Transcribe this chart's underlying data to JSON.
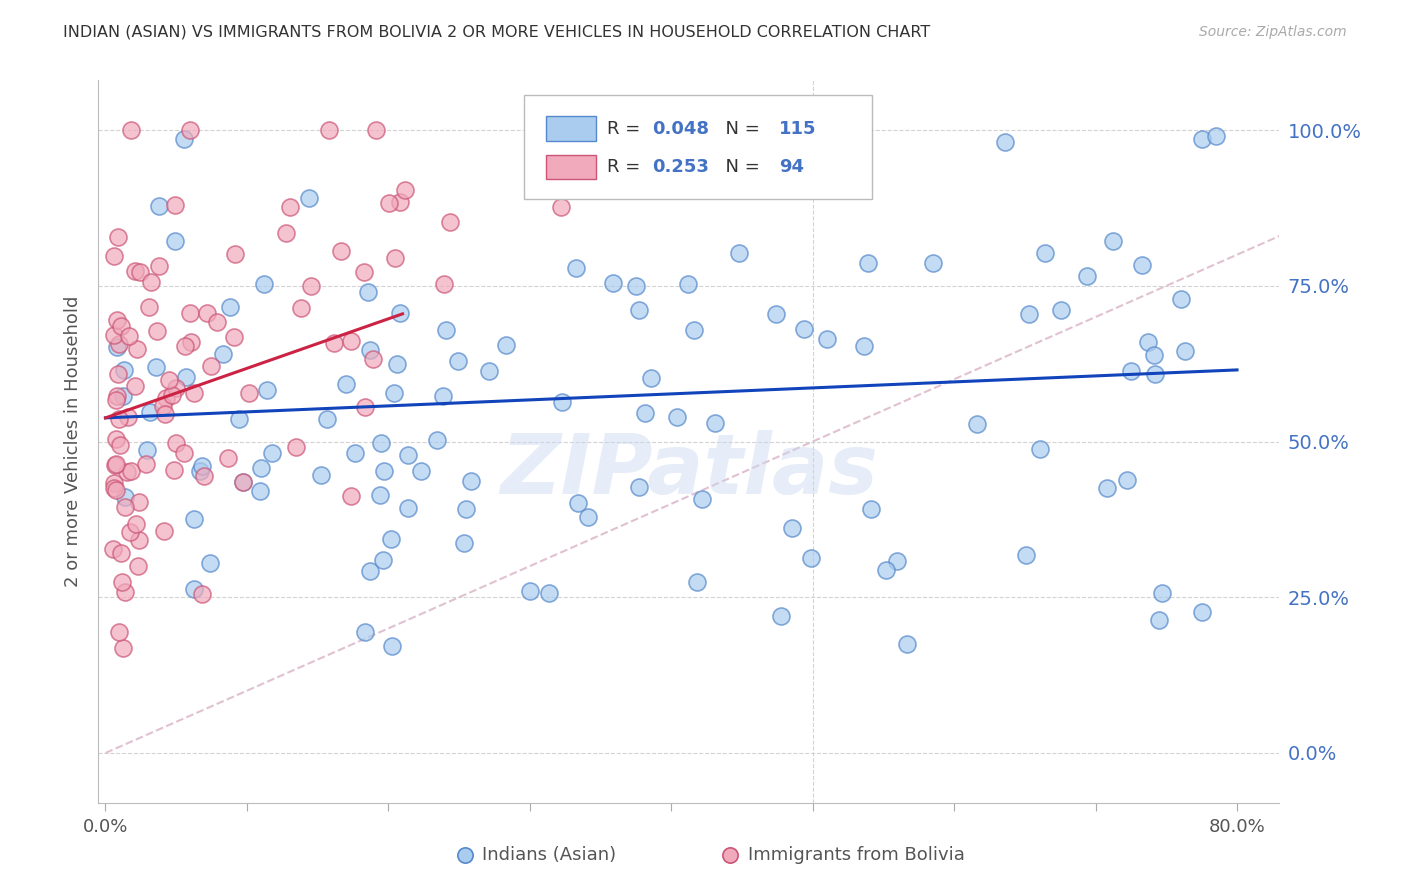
{
  "title": "INDIAN (ASIAN) VS IMMIGRANTS FROM BOLIVIA 2 OR MORE VEHICLES IN HOUSEHOLD CORRELATION CHART",
  "source": "Source: ZipAtlas.com",
  "ylabel": "2 or more Vehicles in Household",
  "xlim": [
    -0.005,
    0.83
  ],
  "ylim": [
    -0.08,
    1.08
  ],
  "x_ticks": [
    0.0,
    0.1,
    0.2,
    0.3,
    0.4,
    0.5,
    0.6,
    0.7,
    0.8
  ],
  "x_tick_labels": [
    "0.0%",
    "",
    "",
    "",
    "",
    "",
    "",
    "",
    "80.0%"
  ],
  "y_ticks_right": [
    0.0,
    0.25,
    0.5,
    0.75,
    1.0
  ],
  "y_tick_labels_right": [
    "0.0%",
    "25.0%",
    "50.0%",
    "75.0%",
    "100.0%"
  ],
  "r1": "0.048",
  "n1": "115",
  "r2": "0.253",
  "n2": "94",
  "color_blue_fill": "#aaccee",
  "color_blue_edge": "#5588cc",
  "color_pink_fill": "#f0aabb",
  "color_pink_edge": "#cc5577",
  "color_trend_blue": "#1144bb",
  "color_trend_pink": "#cc2244",
  "color_axis_blue": "#4472c4",
  "color_grid": "#cccccc",
  "color_diag": "#ddbbcc",
  "watermark": "ZIPatlas",
  "legend1_label": "Indians (Asian)",
  "legend2_label": "Immigrants from Bolivia",
  "indian_trend_x": [
    0.0,
    0.8
  ],
  "indian_trend_y": [
    0.538,
    0.615
  ],
  "bolivia_trend_x": [
    0.0,
    0.21
  ],
  "bolivia_trend_y": [
    0.538,
    0.705
  ]
}
